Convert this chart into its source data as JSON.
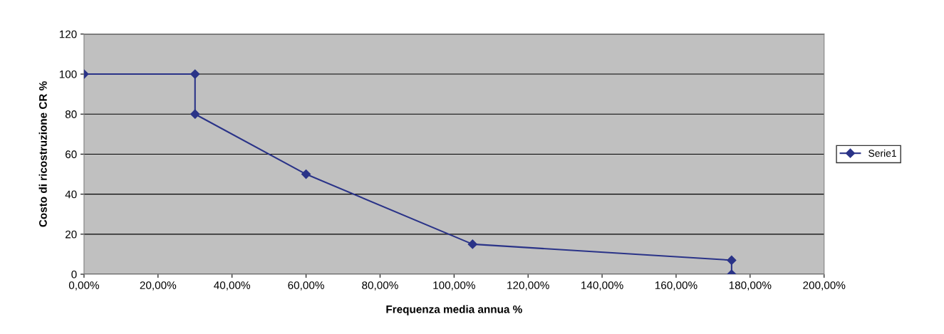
{
  "chart_data": {
    "type": "line",
    "xlabel": "Frequenza media annua %",
    "ylabel": "Costo di ricostruzione CR %",
    "series": [
      {
        "name": "Serie1",
        "color": "#2a3388",
        "x": [
          0,
          30,
          30,
          60,
          105,
          175,
          175
        ],
        "values": [
          100,
          100,
          80,
          50,
          15,
          7,
          0
        ]
      }
    ],
    "xlim": [
      0,
      200
    ],
    "xticks": [
      {
        "value": 0,
        "label": "0,00%"
      },
      {
        "value": 20,
        "label": "20,00%"
      },
      {
        "value": 40,
        "label": "40,00%"
      },
      {
        "value": 60,
        "label": "60,00%"
      },
      {
        "value": 80,
        "label": "80,00%"
      },
      {
        "value": 100,
        "label": "100,00%"
      },
      {
        "value": 120,
        "label": "120,00%"
      },
      {
        "value": 140,
        "label": "140,00%"
      },
      {
        "value": 160,
        "label": "160,00%"
      },
      {
        "value": 180,
        "label": "180,00%"
      },
      {
        "value": 200,
        "label": "200,00%"
      }
    ],
    "ylim": [
      0,
      120
    ],
    "yticks": [
      0,
      20,
      40,
      60,
      80,
      100,
      120
    ],
    "grid": "y",
    "legend": "right",
    "marker": "diamond",
    "line_style": "solid"
  }
}
